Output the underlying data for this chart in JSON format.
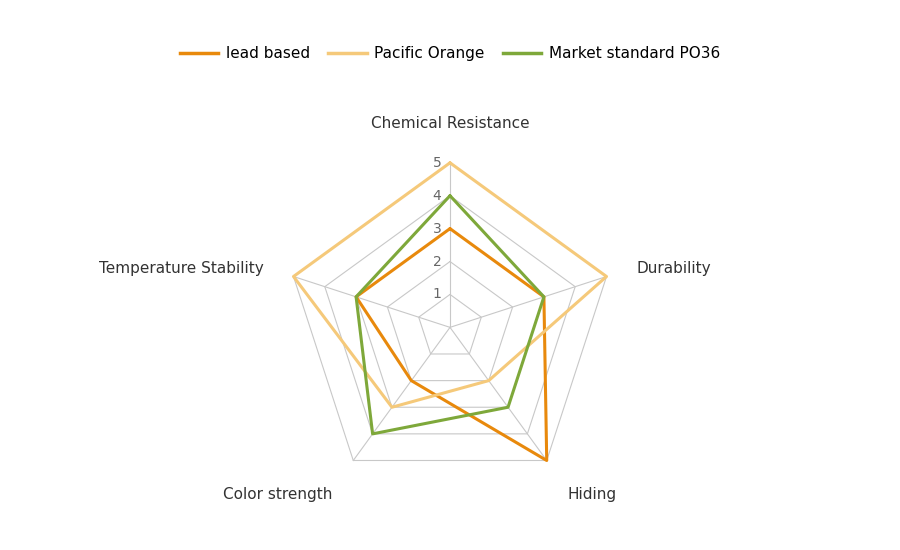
{
  "categories": [
    "Chemical Resistance",
    "Durability",
    "Hiding",
    "Color strength",
    "Temperature Stability"
  ],
  "series": [
    {
      "label": "lead based",
      "values": [
        3,
        3,
        5,
        2,
        3
      ],
      "color": "#E8890C",
      "linewidth": 2.2
    },
    {
      "label": "Pacific Orange",
      "values": [
        5,
        5,
        2,
        3,
        5
      ],
      "color": "#F5C97A",
      "linewidth": 2.2
    },
    {
      "label": "Market standard PO36",
      "values": [
        4,
        3,
        3,
        4,
        3
      ],
      "color": "#7EA83A",
      "linewidth": 2.2
    }
  ],
  "max_value": 5,
  "grid_levels": [
    1,
    2,
    3,
    4,
    5
  ],
  "grid_color": "#C8C8C8",
  "background_color": "#FFFFFF",
  "figsize": [
    9.0,
    5.5
  ],
  "dpi": 100,
  "legend_fontsize": 11,
  "label_fontsize": 11,
  "tick_fontsize": 10
}
